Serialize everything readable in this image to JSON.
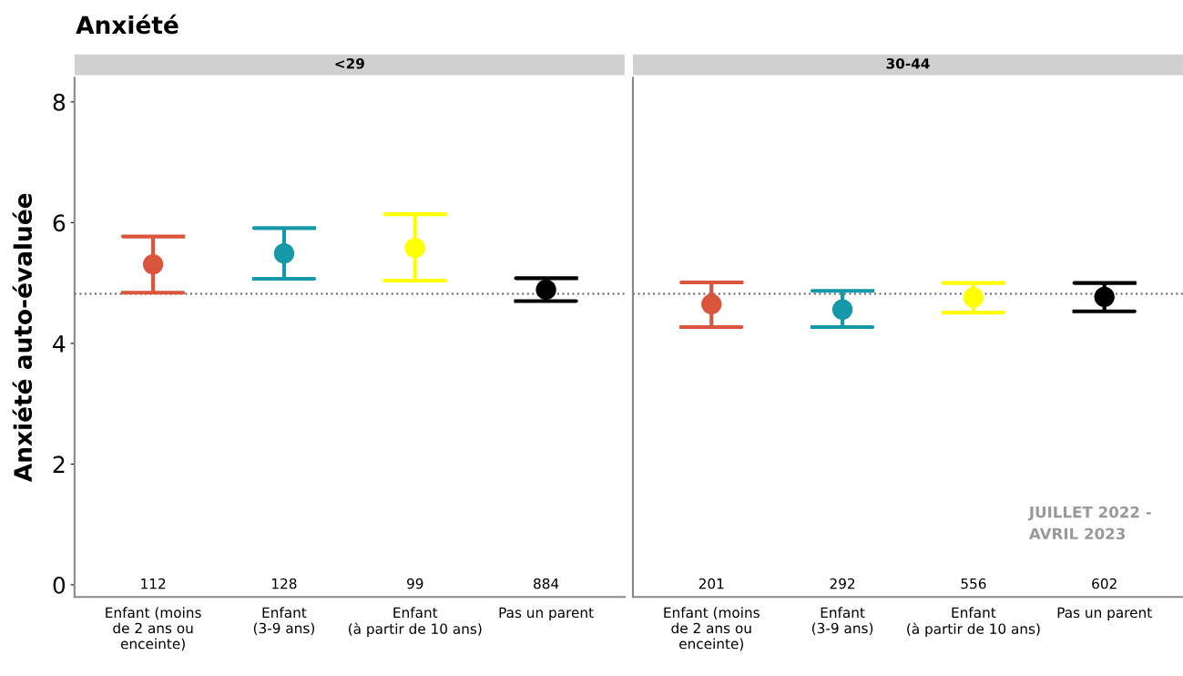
{
  "chart_data": [
    {
      "type": "scatter",
      "title": "Anxiété",
      "subtitle": "<29",
      "ylabel": "Anxiété auto-évaluée",
      "categories": [
        "Enfant (moins\nde 2 ans ou\nenceinte)",
        "Enfant\n(3-9 ans)",
        "Enfant\n(à partir de 10 ans)",
        "Pas un parent"
      ],
      "values": [
        5.31,
        5.49,
        5.58,
        4.89
      ],
      "errors": [
        [
          4.84,
          5.77
        ],
        [
          5.07,
          5.91
        ],
        [
          5.04,
          6.14
        ],
        [
          4.7,
          5.08
        ]
      ],
      "colors": [
        "#d9553b",
        "#1598a8",
        "#ffff00",
        "#000000"
      ],
      "marker": "circle",
      "grid": false,
      "ylim": [
        -0.2,
        8.4
      ],
      "yticks": [
        0,
        2,
        4,
        6,
        8
      ],
      "ref_lines": [
        {
          "axis": "y",
          "value": 4.82,
          "color": "#666666",
          "line_style": "dotted"
        }
      ],
      "annotations": [
        "112",
        "128",
        "99",
        "884"
      ]
    },
    {
      "type": "scatter",
      "subtitle": "30-44",
      "categories": [
        "Enfant (moins\nde 2 ans ou\nenceinte)",
        "Enfant\n(3-9 ans)",
        "Enfant\n(à partir de 10 ans)",
        "Pas un parent"
      ],
      "values": [
        4.65,
        4.56,
        4.76,
        4.77
      ],
      "errors": [
        [
          4.27,
          5.01
        ],
        [
          4.27,
          4.87
        ],
        [
          4.51,
          5.0
        ],
        [
          4.53,
          5.0
        ]
      ],
      "colors": [
        "#d9553b",
        "#1598a8",
        "#ffff00",
        "#000000"
      ],
      "marker": "circle",
      "grid": false,
      "ylim": [
        -0.2,
        8.4
      ],
      "yticks": [
        0,
        2,
        4,
        6,
        8
      ],
      "tick_labels": "x",
      "ref_lines": [
        {
          "axis": "y",
          "value": 4.82,
          "color": "#666666",
          "line_style": "dotted"
        }
      ],
      "annotations": [
        "201",
        "292",
        "556",
        "602",
        "JUILLET 2022 -\nAVRIL 2023"
      ]
    }
  ]
}
